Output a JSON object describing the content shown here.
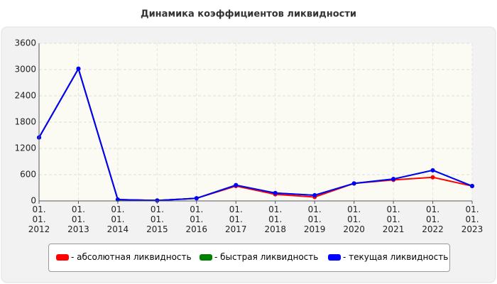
{
  "chart_data": {
    "type": "line",
    "title": "Динамика коэффициентов ликвидности",
    "categories": [
      "01. 01. 2012",
      "01. 01. 2013",
      "01. 01. 2014",
      "01. 01. 2015",
      "01. 01. 2016",
      "01. 01. 2017",
      "01. 01. 2018",
      "01. 01. 2019",
      "01. 01. 2020",
      "01. 01. 2021",
      "01. 01. 2022",
      "01. 01. 2023"
    ],
    "series": [
      {
        "name": "- абсолютная ликвидность",
        "color": "#ff0000",
        "values": [
          1450,
          3020,
          30,
          10,
          60,
          340,
          150,
          90,
          400,
          480,
          540,
          340
        ]
      },
      {
        "name": "- быстрая ликвидность",
        "color": "#008000",
        "values": [
          1450,
          3020,
          30,
          10,
          60,
          360,
          180,
          130,
          400,
          500,
          700,
          340
        ]
      },
      {
        "name": "- текущая ликвидность",
        "color": "#0000ff",
        "values": [
          1450,
          3020,
          30,
          10,
          60,
          360,
          180,
          130,
          400,
          500,
          700,
          340
        ]
      }
    ],
    "ylim": [
      0,
      3600
    ],
    "yticks": [
      0,
      600,
      1200,
      1800,
      2400,
      3000,
      3600
    ],
    "grid": true
  }
}
